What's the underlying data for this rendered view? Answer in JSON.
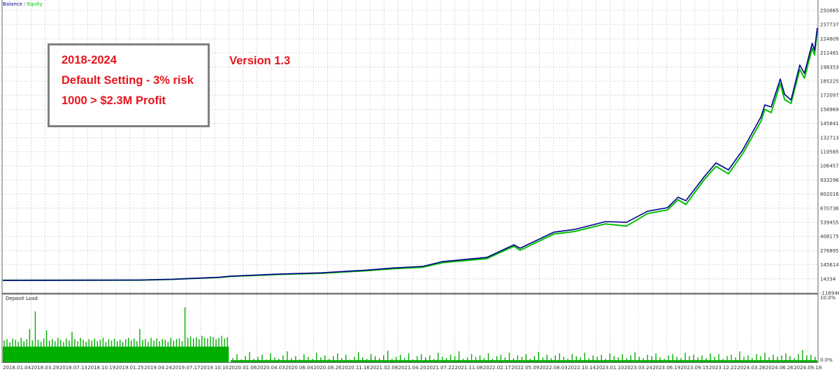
{
  "chart_data": [
    {
      "type": "line",
      "legend": {
        "balance": "Balance",
        "separator": "/",
        "equity": "Equity",
        "placement": "top-left"
      },
      "colors": {
        "balance": "#00008c",
        "equity": "#00c000",
        "grid": "#c8c8c8"
      },
      "grid": true,
      "ylim": [
        -116946,
        2508659
      ],
      "y_ticks": [
        "2508659",
        "2377379",
        "2246099",
        "2114819",
        "1983538",
        "1852258",
        "1720978",
        "1589697",
        "1458417",
        "1327137",
        "1195857",
        "1064576",
        "933296",
        "802016",
        "670736",
        "539455",
        "408175",
        "276895",
        "145614",
        "14334",
        "-116946"
      ],
      "x_ticks": [
        "2018.01.04",
        "2018.03.29",
        "2018.07.13",
        "2018.10.19",
        "2019.01.25",
        "2019.04.24",
        "2019.07.17",
        "2019.10.10",
        "2020.01.06",
        "2020.04.03",
        "2020.06.04",
        "2020.08.26",
        "2020.11.16",
        "2021.02.08",
        "2021.04.20",
        "2021.07.22",
        "2021.11.08",
        "2022.02.17",
        "2022.05.09",
        "2022.08.03",
        "2022.10.14",
        "2023.01.10",
        "2023.03.24",
        "2023.06.19",
        "2023.09.15",
        "2023.12.22",
        "2024.03.28",
        "2024.06.26",
        "2024.09.18"
      ],
      "series": [
        {
          "name": "Balance",
          "x": [
            "2018.01.04",
            "2019.04.10",
            "2019.07.15",
            "2019.12.09",
            "2020.01.12",
            "2020.05.27",
            "2020.09.17",
            "2021.01.26",
            "2021.04.06",
            "2021.07.09",
            "2021.09.22",
            "2022.02.28",
            "2022.05.17",
            "2022.06.05",
            "2022.09.08",
            "2022.11.05",
            "2023.02.03",
            "2023.03.31",
            "2023.06.04",
            "2023.08.05",
            "2023.09.07",
            "2023.10.03",
            "2023.12.05",
            "2024.01.15",
            "2024.02.27",
            "2024.04.14",
            "2024.06.12",
            "2024.06.24",
            "2024.07.13",
            "2024.08.09",
            "2024.08.22",
            "2024.09.10",
            "2024.10.06",
            "2024.10.20",
            "2024.11.12",
            "2024.11.19",
            "2024.11.27"
          ],
          "values": [
            1000,
            3000,
            10000,
            30000,
            40000,
            60000,
            70000,
            95000,
            115000,
            130000,
            175000,
            214000,
            331000,
            299000,
            448000,
            474000,
            546000,
            540000,
            643000,
            676000,
            773000,
            741000,
            962000,
            1092000,
            1027000,
            1209000,
            1521000,
            1631000,
            1612000,
            1872000,
            1729000,
            1677000,
            2002000,
            1924000,
            2203000,
            2138000,
            2346000
          ]
        },
        {
          "name": "Equity",
          "x": [
            "2018.01.04",
            "2019.04.10",
            "2019.07.15",
            "2019.12.09",
            "2020.01.12",
            "2020.05.27",
            "2020.09.17",
            "2021.01.26",
            "2021.04.06",
            "2021.07.09",
            "2021.09.22",
            "2022.02.28",
            "2022.05.17",
            "2022.06.05",
            "2022.09.08",
            "2022.11.05",
            "2023.02.03",
            "2023.03.31",
            "2023.06.04",
            "2023.08.05",
            "2023.09.07",
            "2023.10.03",
            "2023.12.05",
            "2024.01.15",
            "2024.02.27",
            "2024.04.14",
            "2024.06.12",
            "2024.06.24",
            "2024.07.13",
            "2024.08.09",
            "2024.08.22",
            "2024.09.10",
            "2024.10.06",
            "2024.10.20",
            "2024.11.12",
            "2024.11.19",
            "2024.11.27"
          ],
          "values": [
            1000,
            2800,
            9500,
            28000,
            37000,
            56000,
            66000,
            90000,
            108000,
            122000,
            165000,
            202000,
            318000,
            280000,
            430000,
            455000,
            525000,
            505000,
            622000,
            655000,
            750000,
            705000,
            935000,
            1060000,
            990000,
            1175000,
            1480000,
            1590000,
            1560000,
            1830000,
            1680000,
            1645000,
            1960000,
            1880000,
            2160000,
            2095000,
            2320000
          ]
        }
      ]
    },
    {
      "type": "bar",
      "title": "Deposit Load",
      "ylim": [
        0,
        10
      ],
      "y_ticks": [
        "10.0%",
        "0.0%"
      ],
      "color": "#00b000",
      "periods": [
        {
          "start": "2018.01.04",
          "end": "2020.01.06",
          "base": 2.3,
          "values": [
            3.2,
            3.4,
            2.9,
            3.5,
            3.3,
            3.0,
            3.6,
            3.1,
            3.4,
            4.9,
            3.2,
            7.5,
            3.3,
            3.0,
            3.5,
            4.7,
            3.2,
            3.4,
            3.1,
            3.6,
            3.3,
            3.0,
            3.5,
            3.2,
            4.5,
            3.4,
            3.1,
            3.6,
            3.3,
            3.0,
            3.4,
            3.2,
            3.5,
            3.1,
            3.3,
            3.6,
            3.0,
            3.4,
            3.2,
            3.5,
            3.1,
            3.3,
            3.0,
            3.4,
            3.6,
            3.2,
            3.5,
            3.1,
            4.9,
            3.3,
            3.4,
            3.0,
            3.6,
            3.2,
            3.5,
            3.1,
            3.4,
            3.3,
            3.0,
            3.6,
            3.2,
            3.4,
            3.5,
            3.1,
            8.1,
            3.6,
            3.8,
            3.5,
            3.7,
            3.4,
            3.9,
            3.6,
            3.5,
            3.8,
            3.7,
            3.4,
            3.6,
            3.9,
            3.5,
            3.7
          ]
        },
        {
          "start": "2020.01.12",
          "end": "2024.11.27",
          "base": 0.3,
          "values": [
            0.6,
            1.2,
            0.4,
            0.9,
            1.5,
            0.5,
            0.8,
            1.1,
            0.4,
            1.3,
            0.7,
            0.5,
            1.0,
            1.6,
            0.6,
            0.9,
            0.4,
            1.2,
            0.8,
            0.5,
            1.4,
            0.7,
            1.0,
            0.5,
            0.9,
            1.3,
            0.6,
            1.1,
            0.4,
            0.8,
            1.5,
            0.7,
            0.5,
            1.2,
            0.9,
            0.6,
            1.0,
            1.7,
            0.5,
            0.8,
            1.1,
            0.6,
            1.3,
            0.4,
            0.9,
            1.2,
            0.7,
            1.0,
            0.5,
            1.4,
            0.8,
            0.6,
            1.1,
            0.9,
            1.6,
            0.5,
            0.7,
            1.2,
            0.8,
            1.0,
            0.6,
            1.3,
            0.5,
            0.9,
            1.1,
            0.7,
            1.4,
            0.6,
            1.0,
            0.8,
            1.2,
            0.5,
            0.9,
            1.5,
            0.7,
            1.1,
            0.6,
            1.0,
            1.3,
            0.8,
            0.5,
            1.2,
            0.9,
            0.7,
            1.4,
            0.6,
            1.0,
            0.8,
            1.1,
            0.5,
            1.3,
            0.9,
            0.7,
            1.2,
            0.6,
            1.0,
            1.5,
            0.8,
            0.6,
            1.1,
            0.9,
            1.3,
            0.7,
            0.5,
            1.0,
            1.2,
            0.8,
            0.6,
            1.4,
            0.9,
            1.1,
            0.7,
            1.0,
            0.6,
            1.3,
            0.8,
            1.2,
            0.5,
            0.9,
            1.1,
            0.7,
            1.6,
            0.8,
            1.0,
            0.6,
            1.2,
            0.9,
            1.4,
            0.7,
            1.1,
            0.8,
            1.0,
            1.3,
            0.9,
            0.6,
            1.2,
            1.8,
            1.0,
            1.1,
            0.8
          ]
        }
      ]
    }
  ],
  "annotations": {
    "box_lines": [
      "2018-2024",
      "Default Setting - 3% risk",
      "1000 > $2.3M Profit"
    ],
    "version": "Version 1.3",
    "text_color": "#e8141c"
  }
}
